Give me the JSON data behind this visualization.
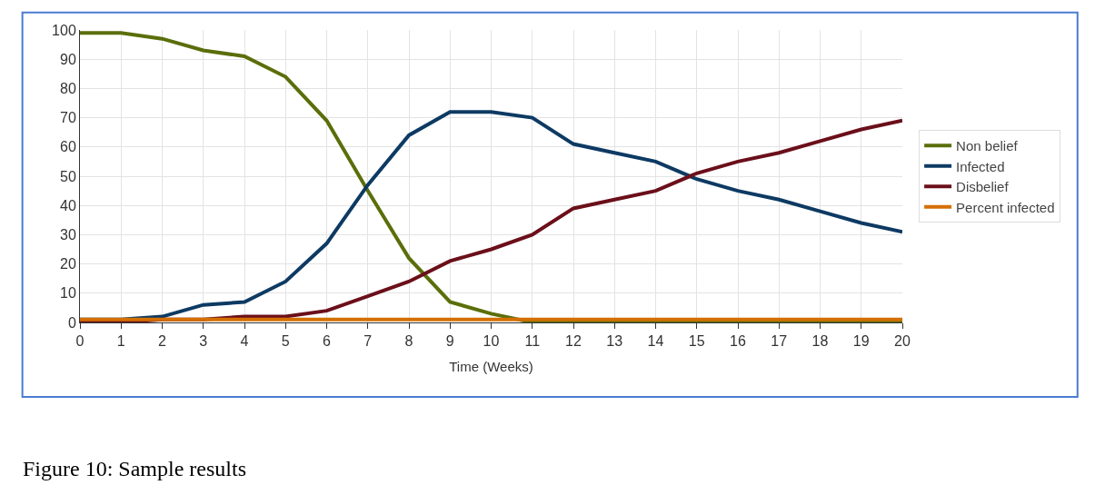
{
  "chart_data": {
    "type": "line",
    "xlabel": "Time (Weeks)",
    "x": [
      0,
      1,
      2,
      3,
      4,
      5,
      6,
      7,
      8,
      9,
      10,
      11,
      12,
      13,
      14,
      15,
      16,
      17,
      18,
      19,
      20
    ],
    "series": [
      {
        "name": "Non belief",
        "color": "#5a6e0a",
        "values": [
          99,
          99,
          97,
          93,
          91,
          84,
          69,
          45,
          22,
          7,
          3,
          0,
          0,
          0,
          0,
          0,
          0,
          0,
          0,
          0,
          0
        ]
      },
      {
        "name": "Infected",
        "color": "#0d3a63",
        "values": [
          1,
          1,
          2,
          6,
          7,
          14,
          27,
          47,
          64,
          72,
          72,
          70,
          61,
          58,
          55,
          49,
          45,
          42,
          38,
          34,
          31
        ]
      },
      {
        "name": "Disbelief",
        "color": "#6b0f1a",
        "values": [
          0,
          0,
          1,
          1,
          2,
          2,
          4,
          9,
          14,
          21,
          25,
          30,
          39,
          42,
          45,
          51,
          55,
          58,
          62,
          66,
          69
        ]
      },
      {
        "name": "Percent infected",
        "color": "#d46f00",
        "values": [
          1,
          1,
          1,
          1,
          1,
          1,
          1,
          1,
          1,
          1,
          1,
          1,
          1,
          1,
          1,
          1,
          1,
          1,
          1,
          1,
          1
        ]
      }
    ],
    "xlim": [
      0,
      20
    ],
    "xticks": [
      0,
      1,
      2,
      3,
      4,
      5,
      6,
      7,
      8,
      9,
      10,
      11,
      12,
      13,
      14,
      15,
      16,
      17,
      18,
      19,
      20
    ],
    "ylim": [
      0,
      100
    ],
    "yticks": [
      0,
      10,
      20,
      30,
      40,
      50,
      60,
      70,
      80,
      90,
      100
    ],
    "grid": true,
    "legend": "right",
    "marker": "none",
    "line_style": "solid",
    "annotations": [
      "Figure 10: Sample results"
    ]
  }
}
